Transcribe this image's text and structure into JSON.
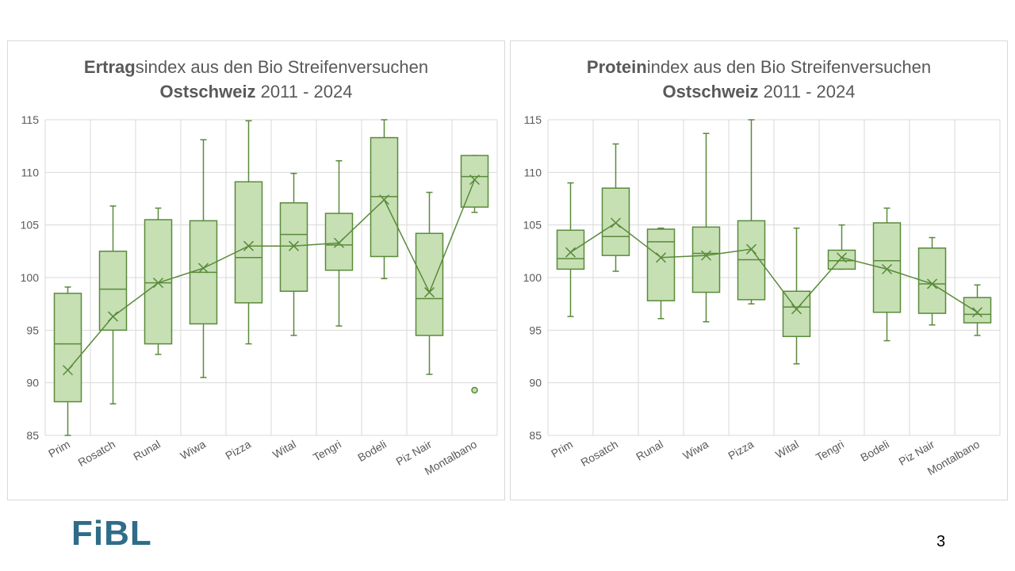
{
  "page": {
    "number": "3",
    "logo_text": "FiBL"
  },
  "colors": {
    "box_fill": "#c6e0b4",
    "stroke": "#5a8a3a",
    "grid": "#d9d9d9",
    "text": "#595959"
  },
  "chart_data": [
    {
      "type": "boxplot",
      "title_bold": "Ertrag",
      "title_rest": "sindex aus den Bio Streifenversuchen",
      "subtitle_bold": "Ostschweiz",
      "subtitle_rest": " 2011 - 2024",
      "ylim": [
        85,
        115
      ],
      "yticks": [
        "85",
        "90",
        "95",
        "100",
        "105",
        "110",
        "115"
      ],
      "grid": true,
      "categories": [
        "Prim",
        "Rosatch",
        "Runal",
        "Wiwa",
        "Pizza",
        "Wital",
        "Tengri",
        "Bodeli",
        "Piz Nair",
        "Montalbano"
      ],
      "boxes": [
        {
          "min": 85.0,
          "q1": 88.2,
          "median": 93.7,
          "q3": 98.5,
          "max": 99.1,
          "mean": 91.2
        },
        {
          "min": 88.0,
          "q1": 95.0,
          "median": 98.9,
          "q3": 102.5,
          "max": 106.8,
          "mean": 96.3
        },
        {
          "min": 92.7,
          "q1": 93.7,
          "median": 99.5,
          "q3": 105.5,
          "max": 106.6,
          "mean": 99.5
        },
        {
          "min": 90.5,
          "q1": 95.6,
          "median": 100.5,
          "q3": 105.4,
          "max": 113.1,
          "mean": 100.9
        },
        {
          "min": 93.7,
          "q1": 97.6,
          "median": 101.9,
          "q3": 109.1,
          "max": 114.9,
          "mean": 103.0
        },
        {
          "min": 94.5,
          "q1": 98.7,
          "median": 104.1,
          "q3": 107.1,
          "max": 109.9,
          "mean": 103.0
        },
        {
          "min": 95.4,
          "q1": 100.7,
          "median": 103.1,
          "q3": 106.1,
          "max": 111.1,
          "mean": 103.3
        },
        {
          "min": 99.9,
          "q1": 102.0,
          "median": 107.7,
          "q3": 113.3,
          "max": 115.0,
          "mean": 107.4
        },
        {
          "min": 90.8,
          "q1": 94.5,
          "median": 98.0,
          "q3": 104.2,
          "max": 108.1,
          "mean": 98.6
        },
        {
          "min": 106.2,
          "q1": 106.7,
          "median": 109.6,
          "q3": 111.6,
          "max": 111.6,
          "mean": 109.3
        }
      ],
      "outliers": [
        {
          "category": "Montalbano",
          "value": 89.3
        }
      ]
    },
    {
      "type": "boxplot",
      "title_bold": "Protein",
      "title_rest": "index aus den Bio Streifenversuchen",
      "subtitle_bold": "Ostschweiz",
      "subtitle_rest": " 2011 - 2024",
      "ylim": [
        85,
        115
      ],
      "yticks": [
        "85",
        "90",
        "95",
        "100",
        "105",
        "110",
        "115"
      ],
      "grid": true,
      "categories": [
        "Prim",
        "Rosatch",
        "Runal",
        "Wiwa",
        "Pizza",
        "Wital",
        "Tengri",
        "Bodeli",
        "Piz Nair",
        "Montalbano"
      ],
      "boxes": [
        {
          "min": 96.3,
          "q1": 100.8,
          "median": 101.8,
          "q3": 104.5,
          "max": 109.0,
          "mean": 102.4
        },
        {
          "min": 100.6,
          "q1": 102.1,
          "median": 103.9,
          "q3": 108.5,
          "max": 112.7,
          "mean": 105.2
        },
        {
          "min": 96.1,
          "q1": 97.8,
          "median": 103.4,
          "q3": 104.6,
          "max": 104.7,
          "mean": 101.9
        },
        {
          "min": 95.8,
          "q1": 98.6,
          "median": 102.3,
          "q3": 104.8,
          "max": 113.7,
          "mean": 102.1
        },
        {
          "min": 97.5,
          "q1": 97.9,
          "median": 101.7,
          "q3": 105.4,
          "max": 115.0,
          "mean": 102.7
        },
        {
          "min": 91.8,
          "q1": 94.4,
          "median": 97.2,
          "q3": 98.7,
          "max": 104.7,
          "mean": 97.0
        },
        {
          "min": 100.8,
          "q1": 100.8,
          "median": 101.6,
          "q3": 102.6,
          "max": 105.0,
          "mean": 101.9
        },
        {
          "min": 94.0,
          "q1": 96.7,
          "median": 101.6,
          "q3": 105.2,
          "max": 106.6,
          "mean": 100.8
        },
        {
          "min": 95.5,
          "q1": 96.6,
          "median": 99.4,
          "q3": 102.8,
          "max": 103.8,
          "mean": 99.4
        },
        {
          "min": 94.5,
          "q1": 95.7,
          "median": 96.5,
          "q3": 98.1,
          "max": 99.3,
          "mean": 96.7
        }
      ],
      "outliers": []
    }
  ]
}
